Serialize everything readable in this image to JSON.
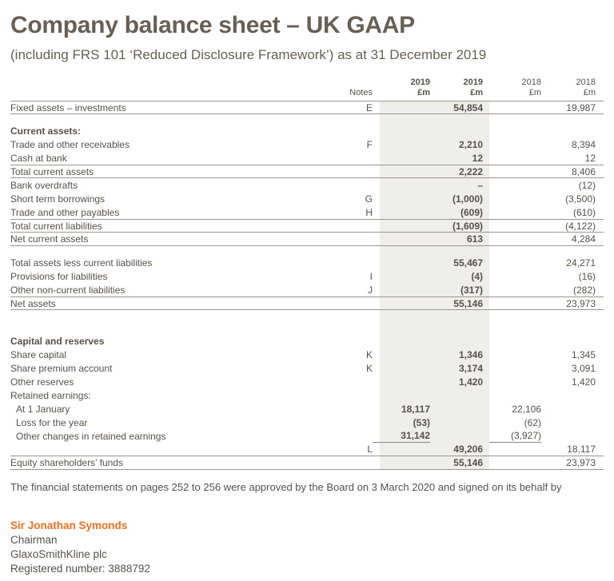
{
  "page": {
    "title": "Company balance sheet – UK GAAP",
    "subtitle": "(including FRS 101 ‘Reduced Disclosure Framework’) as at 31 December 2019"
  },
  "colors": {
    "accent_orange": "#f36f21",
    "text_gray": "#57514a",
    "band_shade": "#f0eeea",
    "rule_gray": "#9c968e"
  },
  "table": {
    "header": {
      "notes": "Notes",
      "col_2019a": {
        "year": "2019",
        "unit": "£m"
      },
      "col_2019b": {
        "year": "2019",
        "unit": "£m"
      },
      "col_2018a": {
        "year": "2018",
        "unit": "£m"
      },
      "col_2018b": {
        "year": "2018",
        "unit": "£m"
      }
    },
    "rows": [
      {
        "label": "Fixed assets – investments",
        "note": "E",
        "v19b": "54,854",
        "v18b": "19,987"
      },
      {
        "label": "Current assets:"
      },
      {
        "label": "Trade and other receivables",
        "note": "F",
        "v19b": "2,210",
        "v18b": "8,394"
      },
      {
        "label": "Cash at bank",
        "v19b": "12",
        "v18b": "12"
      },
      {
        "label": "Total current assets",
        "v19b": "2,222",
        "v18b": "8,406"
      },
      {
        "label": "Bank overdrafts",
        "v19b": "–",
        "v18b": "(12)"
      },
      {
        "label": "Short term borrowings",
        "note": "G",
        "v19b": "(1,000)",
        "v18b": "(3,500)"
      },
      {
        "label": "Trade and other payables",
        "note": "H",
        "v19b": "(609)",
        "v18b": "(610)"
      },
      {
        "label": "Total current liabilities",
        "v19b": "(1,609)",
        "v18b": "(4,122)"
      },
      {
        "label": "Net current assets",
        "v19b": "613",
        "v18b": "4,284"
      },
      {
        "label": "Total assets less current liabilities",
        "v19b": "55,467",
        "v18b": "24,271"
      },
      {
        "label": "Provisions for liabilities",
        "note": "I",
        "v19b": "(4)",
        "v18b": "(16)"
      },
      {
        "label": "Other non-current liabilities",
        "note": "J",
        "v19b": "(317)",
        "v18b": "(282)"
      },
      {
        "label": "Net assets",
        "v19b": "55,146",
        "v18b": "23,973"
      },
      {
        "label": "Capital and reserves"
      },
      {
        "label": "Share capital",
        "note": "K",
        "v19b": "1,346",
        "v18b": "1,345"
      },
      {
        "label": "Share premium account",
        "note": "K",
        "v19b": "3,174",
        "v18b": "3,091"
      },
      {
        "label": "Other reserves",
        "v19b": "1,420",
        "v18b": "1,420"
      },
      {
        "label": "Retained earnings:"
      },
      {
        "label": "At 1 January",
        "v19a": "18,117",
        "v18a": "22,106"
      },
      {
        "label": "Loss for the year",
        "v19a": "(53)",
        "v18a": "(62)"
      },
      {
        "label": "Other changes in retained earnings",
        "v19a": "31,142",
        "v18a": "(3,927)"
      },
      {
        "note": "L",
        "v19b": "49,206",
        "v18b": "18,117"
      },
      {
        "label": "Equity shareholders’ funds",
        "v19b": "55,146",
        "v18b": "23,973"
      }
    ]
  },
  "footer": {
    "approval": "The financial statements on pages 252 to 256 were approved by the Board on 3 March 2020 and signed on its behalf by",
    "signatory": "Sir Jonathan Symonds",
    "role": "Chairman",
    "company": "GlaxoSmithKline plc",
    "registered": "Registered number: 3888792"
  }
}
